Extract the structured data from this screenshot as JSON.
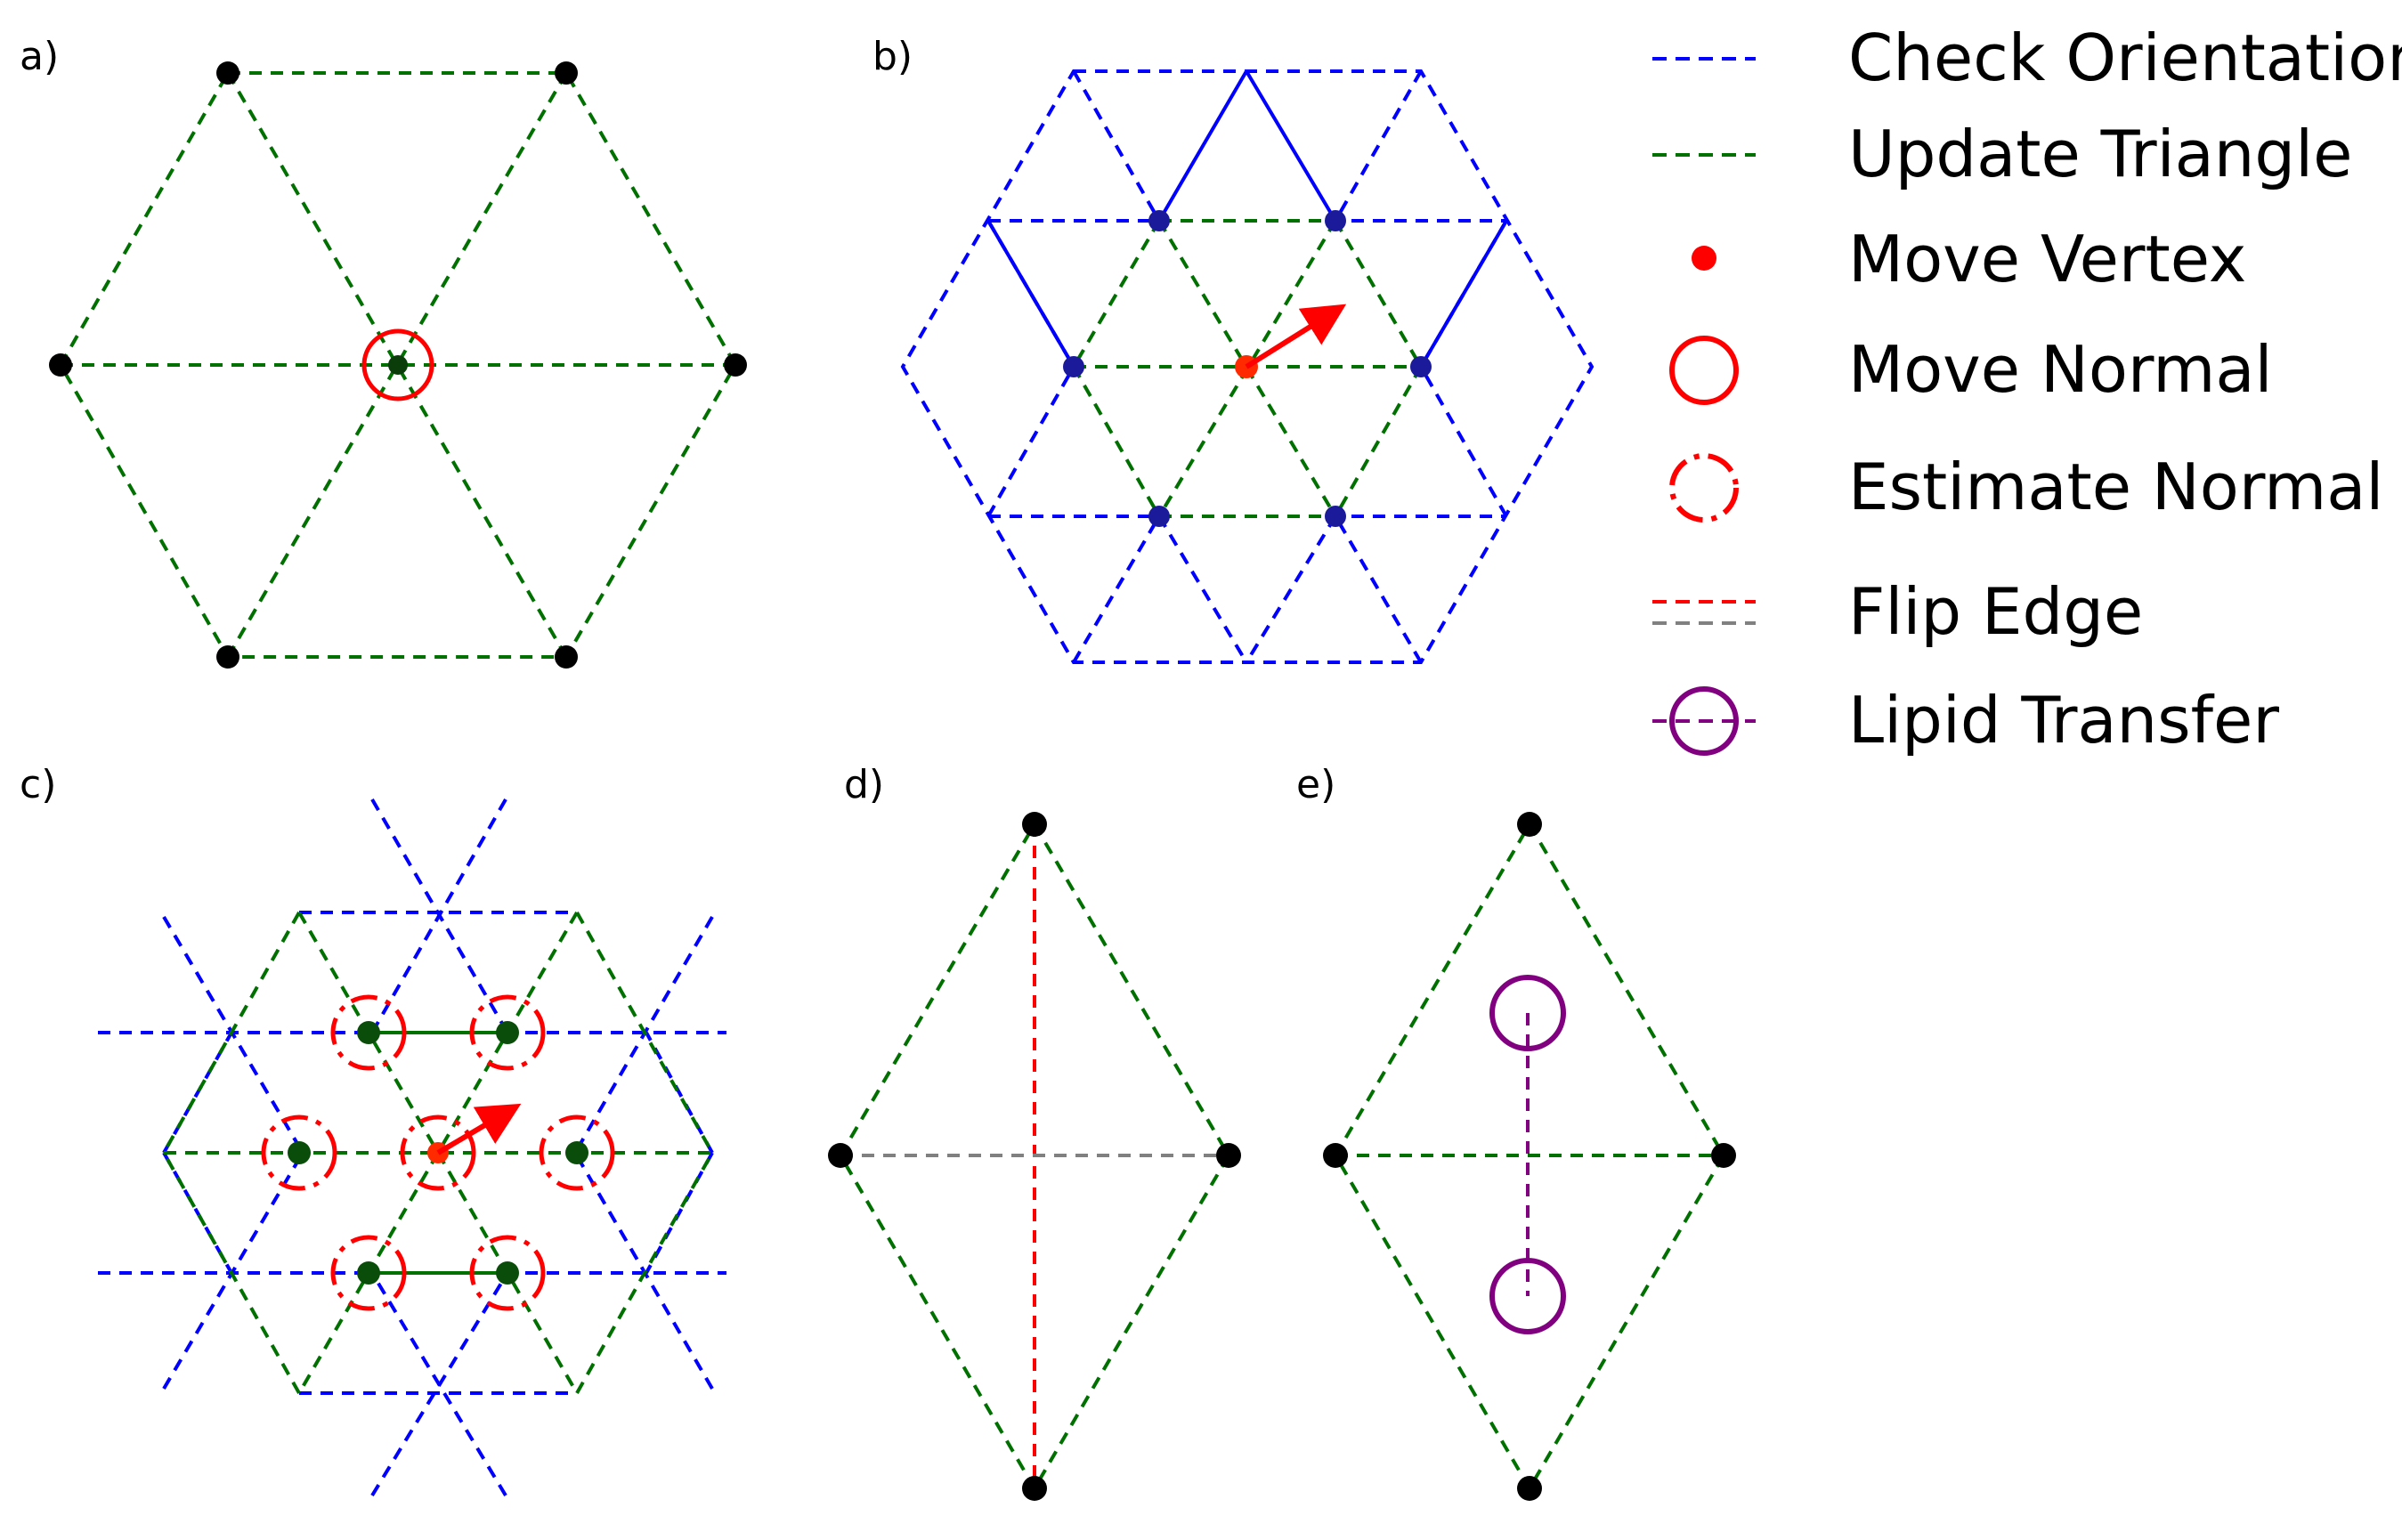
{
  "panels": {
    "a": {
      "label": "a)"
    },
    "b": {
      "label": "b)"
    },
    "c": {
      "label": "c)"
    },
    "d": {
      "label": "d)"
    },
    "e": {
      "label": "e)"
    }
  },
  "legend": {
    "items": [
      {
        "label": "Check Orientation",
        "symbol": "blue-dashed-line"
      },
      {
        "label": "Update Triangle",
        "symbol": "green-dashed-line"
      },
      {
        "label": "Move Vertex",
        "symbol": "red-dot"
      },
      {
        "label": "Move Normal",
        "symbol": "red-circle"
      },
      {
        "label": "Estimate Normal",
        "symbol": "red-dash-dot-circle"
      },
      {
        "label": "Flip Edge",
        "symbol": "red-and-gray-dashed-lines"
      },
      {
        "label": "Lipid Transfer",
        "symbol": "purple-circle-with-dashed-line"
      }
    ]
  },
  "colors": {
    "check_orientation": "#0000ff",
    "update_triangle": "#007000",
    "move": "#ff0000",
    "flip_gray": "#808080",
    "lipid": "#800080",
    "vertex": "#000000"
  }
}
